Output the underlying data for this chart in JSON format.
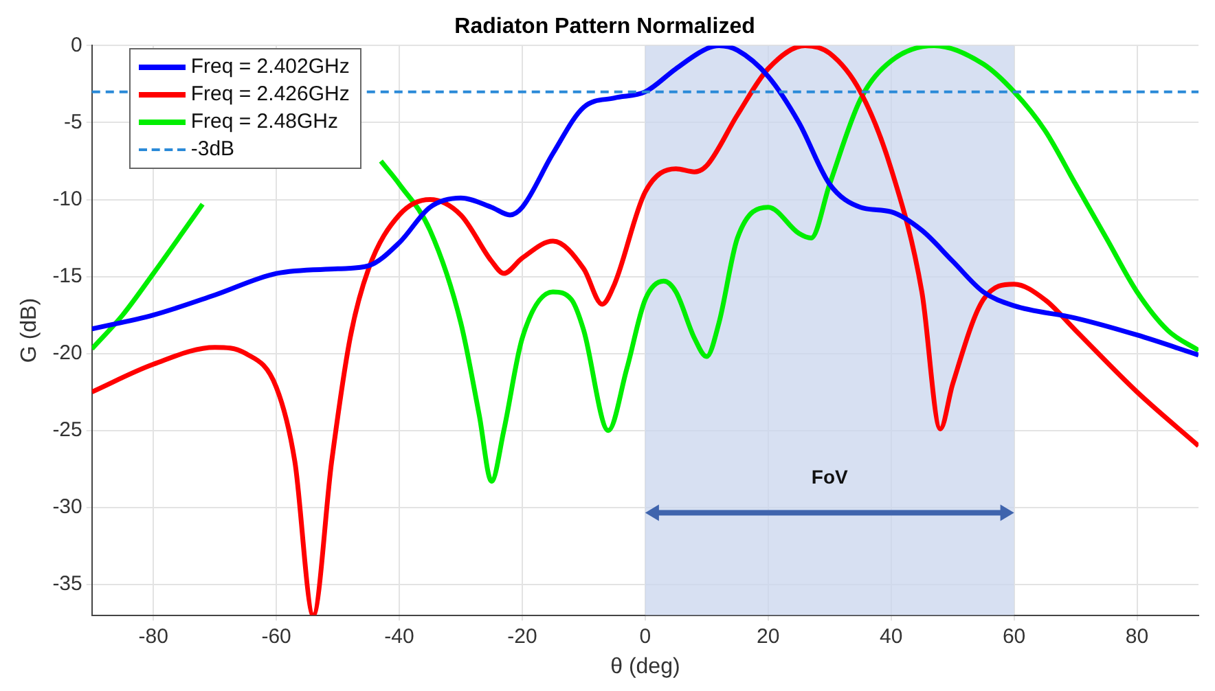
{
  "chart_data": {
    "type": "line",
    "title": "Radiaton Pattern Normalized",
    "xlabel": "θ (deg)",
    "ylabel": "G (dB)",
    "series": [
      {
        "name": "Freq = 2.402GHz",
        "color": "#0000ff",
        "x": [
          -90,
          -80,
          -70,
          -60,
          -50,
          -45,
          -40,
          -35,
          -30,
          -25,
          -22,
          -20,
          -15,
          -10,
          -5,
          0,
          5,
          10,
          12,
          15,
          20,
          25,
          30,
          35,
          40,
          45,
          50,
          55,
          60,
          70,
          80,
          90
        ],
        "values": [
          -18.4,
          -17.5,
          -16.2,
          -14.8,
          -14.5,
          -14.3,
          -12.8,
          -10.5,
          -9.9,
          -10.5,
          -11,
          -10.5,
          -7,
          -4,
          -3.4,
          -3,
          -1.5,
          -0.2,
          0,
          -0.3,
          -2,
          -5,
          -9,
          -10.5,
          -10.8,
          -12,
          -14,
          -16,
          -16.9,
          -17.7,
          -18.8,
          -20.1
        ]
      },
      {
        "name": "Freq = 2.426GHz",
        "color": "#ff0000",
        "x": [
          -90,
          -80,
          -70,
          -65,
          -60,
          -57,
          -54,
          -51,
          -48,
          -45,
          -40,
          -35,
          -30,
          -25,
          -23,
          -20,
          -15,
          -10,
          -7,
          -5,
          0,
          5,
          8,
          10,
          15,
          20,
          26,
          30,
          35,
          40,
          45,
          48,
          50,
          55,
          60,
          65,
          70,
          80,
          90
        ],
        "values": [
          -22.5,
          -20.7,
          -19.6,
          -20,
          -22.2,
          -27,
          -37,
          -27,
          -19,
          -14.5,
          -11,
          -10,
          -11,
          -14,
          -14.8,
          -13.8,
          -12.7,
          -14.5,
          -16.8,
          -15.5,
          -9.5,
          -8,
          -8.2,
          -7.8,
          -4.5,
          -1.5,
          0,
          -0.5,
          -3,
          -8,
          -16,
          -24.9,
          -22,
          -16.5,
          -15.5,
          -16.5,
          -18.5,
          -22.5,
          -26
        ]
      },
      {
        "name": "Freq = 2.48GHz",
        "color": "#00ee00",
        "x": [
          -90,
          -85,
          -80,
          -75,
          -72,
          -65,
          -60,
          -55,
          -50,
          -47,
          -43,
          -40,
          -35,
          -30,
          -27,
          -25,
          -23,
          -20,
          -15,
          -12,
          -10,
          -6,
          -3,
          0,
          3,
          5,
          8,
          10,
          12,
          15,
          20,
          25,
          27,
          30,
          35,
          40,
          47,
          55,
          60,
          65,
          70,
          75,
          80,
          85,
          90
        ],
        "values": [
          -19.7,
          -17.5,
          -14.8,
          -12,
          -10.3,
          null,
          null,
          null,
          null,
          null,
          -7.5,
          -9,
          -12,
          -18,
          -24,
          -28.3,
          -25,
          -19,
          -16,
          -16.5,
          -18.5,
          -25,
          -21,
          -16.5,
          -15.3,
          -16,
          -19,
          -20.2,
          -18,
          -12.5,
          -10.5,
          -12.2,
          -12.5,
          -9,
          -3.5,
          -1,
          0,
          -1.2,
          -3,
          -5.5,
          -9,
          -12.5,
          -16,
          -18.5,
          -19.8
        ]
      }
    ],
    "ref_lines": [
      {
        "axis": "y",
        "value": -3,
        "label": "-3dB",
        "color": "#2b8ad8",
        "line_style": "dashed"
      }
    ],
    "bands": [
      {
        "axis": "x",
        "from": 0,
        "to": 60,
        "color": "#c9d6ee"
      }
    ],
    "annotations": [
      "FoV"
    ],
    "xlim": [
      -90,
      90
    ],
    "xticks": [
      -80,
      -60,
      -40,
      -20,
      0,
      20,
      40,
      60,
      80
    ],
    "ylim": [
      -37,
      0
    ],
    "yticks": [
      -35,
      -30,
      -25,
      -20,
      -15,
      -10,
      -5,
      0
    ],
    "grid": true,
    "legend": "top left",
    "line_style": "solid",
    "marker": "none"
  }
}
